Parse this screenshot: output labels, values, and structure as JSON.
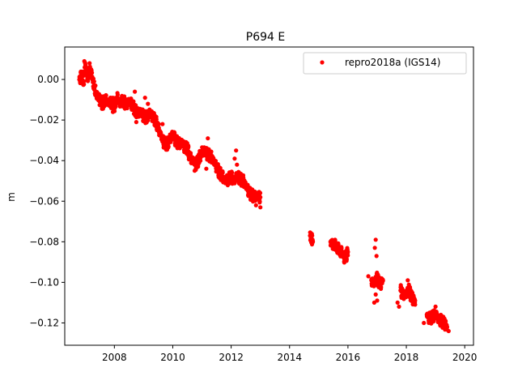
{
  "chart_data": {
    "type": "scatter",
    "title": "P694 E",
    "xlabel": "",
    "ylabel": "m",
    "xlim": [
      2006.3,
      2020.3
    ],
    "ylim": [
      -0.131,
      0.016
    ],
    "xticks": [
      2008,
      2010,
      2012,
      2014,
      2016,
      2018,
      2020
    ],
    "xtick_labels": [
      "2008",
      "2010",
      "2012",
      "2014",
      "2016",
      "2018",
      "2020"
    ],
    "yticks": [
      0.0,
      -0.02,
      -0.04,
      -0.06,
      -0.08,
      -0.1,
      -0.12
    ],
    "ytick_labels": [
      "0.00",
      "−0.02",
      "−0.04",
      "−0.06",
      "−0.08",
      "−0.10",
      "−0.12"
    ],
    "legend": {
      "position": "top-right",
      "entries": [
        "repro2018a (IGS14)"
      ]
    },
    "grid": false,
    "series": [
      {
        "name": "repro2018a (IGS14)",
        "color": "#ff0000",
        "marker": "circle",
        "points": [
          [
            2006.8,
            0.0
          ],
          [
            2006.9,
            0.002
          ],
          [
            2006.95,
            -0.001
          ],
          [
            2007.0,
            0.008
          ],
          [
            2007.05,
            0.003
          ],
          [
            2007.1,
            0.001
          ],
          [
            2007.2,
            0.005
          ],
          [
            2007.25,
            0.0
          ],
          [
            2007.3,
            -0.003
          ],
          [
            2007.35,
            -0.006
          ],
          [
            2007.4,
            -0.008
          ],
          [
            2007.5,
            -0.01
          ],
          [
            2007.6,
            -0.012
          ],
          [
            2007.7,
            -0.01
          ],
          [
            2007.8,
            -0.012
          ],
          [
            2007.9,
            -0.011
          ],
          [
            2008.0,
            -0.013
          ],
          [
            2008.1,
            -0.009
          ],
          [
            2008.2,
            -0.012
          ],
          [
            2008.3,
            -0.01
          ],
          [
            2008.4,
            -0.013
          ],
          [
            2008.5,
            -0.011
          ],
          [
            2008.6,
            -0.012
          ],
          [
            2008.7,
            -0.015
          ],
          [
            2008.8,
            -0.017
          ],
          [
            2008.9,
            -0.016
          ],
          [
            2009.0,
            -0.018
          ],
          [
            2009.1,
            -0.019
          ],
          [
            2009.2,
            -0.017
          ],
          [
            2009.3,
            -0.018
          ],
          [
            2009.4,
            -0.02
          ],
          [
            2009.5,
            -0.024
          ],
          [
            2009.6,
            -0.028
          ],
          [
            2009.7,
            -0.031
          ],
          [
            2009.8,
            -0.032
          ],
          [
            2009.9,
            -0.03
          ],
          [
            2010.0,
            -0.027
          ],
          [
            2010.1,
            -0.03
          ],
          [
            2010.2,
            -0.032
          ],
          [
            2010.3,
            -0.031
          ],
          [
            2010.4,
            -0.033
          ],
          [
            2010.5,
            -0.034
          ],
          [
            2010.6,
            -0.039
          ],
          [
            2010.7,
            -0.04
          ],
          [
            2010.8,
            -0.042
          ],
          [
            2010.9,
            -0.039
          ],
          [
            2011.0,
            -0.036
          ],
          [
            2011.1,
            -0.035
          ],
          [
            2011.2,
            -0.037
          ],
          [
            2011.3,
            -0.038
          ],
          [
            2011.4,
            -0.04
          ],
          [
            2011.5,
            -0.043
          ],
          [
            2011.6,
            -0.046
          ],
          [
            2011.7,
            -0.048
          ],
          [
            2011.8,
            -0.05
          ],
          [
            2011.9,
            -0.049
          ],
          [
            2012.0,
            -0.048
          ],
          [
            2012.1,
            -0.05
          ],
          [
            2012.2,
            -0.047
          ],
          [
            2012.3,
            -0.049
          ],
          [
            2012.4,
            -0.05
          ],
          [
            2012.5,
            -0.052
          ],
          [
            2012.6,
            -0.055
          ],
          [
            2012.7,
            -0.057
          ],
          [
            2012.8,
            -0.058
          ],
          [
            2012.9,
            -0.057
          ],
          [
            2013.0,
            -0.058
          ],
          [
            2014.7,
            -0.077
          ],
          [
            2014.75,
            -0.078
          ],
          [
            2014.8,
            -0.08
          ],
          [
            2015.4,
            -0.08
          ],
          [
            2015.5,
            -0.081
          ],
          [
            2015.8,
            -0.086
          ],
          [
            2015.9,
            -0.088
          ],
          [
            2016.0,
            -0.085
          ],
          [
            2016.8,
            -0.099
          ],
          [
            2016.9,
            -0.1
          ],
          [
            2017.0,
            -0.098
          ],
          [
            2017.1,
            -0.101
          ],
          [
            2017.2,
            -0.099
          ],
          [
            2017.8,
            -0.104
          ],
          [
            2017.9,
            -0.106
          ],
          [
            2018.0,
            -0.105
          ],
          [
            2018.1,
            -0.104
          ],
          [
            2018.2,
            -0.108
          ],
          [
            2018.3,
            -0.109
          ],
          [
            2018.7,
            -0.116
          ],
          [
            2018.8,
            -0.118
          ],
          [
            2018.9,
            -0.117
          ],
          [
            2019.0,
            -0.115
          ],
          [
            2019.1,
            -0.118
          ],
          [
            2019.2,
            -0.119
          ],
          [
            2019.3,
            -0.12
          ],
          [
            2019.4,
            -0.122
          ]
        ],
        "outliers": [
          [
            2006.97,
            0.009
          ],
          [
            2007.15,
            0.008
          ],
          [
            2007.35,
            -0.003
          ],
          [
            2007.95,
            -0.016
          ],
          [
            2008.7,
            -0.006
          ],
          [
            2008.75,
            -0.021
          ],
          [
            2009.05,
            -0.009
          ],
          [
            2009.15,
            -0.012
          ],
          [
            2009.65,
            -0.022
          ],
          [
            2010.05,
            -0.026
          ],
          [
            2010.75,
            -0.045
          ],
          [
            2011.2,
            -0.029
          ],
          [
            2011.15,
            -0.044
          ],
          [
            2012.17,
            -0.035
          ],
          [
            2012.12,
            -0.039
          ],
          [
            2012.2,
            -0.042
          ],
          [
            2012.85,
            -0.062
          ],
          [
            2013.0,
            -0.063
          ],
          [
            2016.95,
            -0.079
          ],
          [
            2016.92,
            -0.083
          ],
          [
            2016.98,
            -0.087
          ],
          [
            2016.95,
            -0.106
          ],
          [
            2016.9,
            -0.11
          ],
          [
            2017.0,
            -0.109
          ],
          [
            2016.7,
            -0.097
          ],
          [
            2017.7,
            -0.11
          ],
          [
            2017.75,
            -0.112
          ],
          [
            2018.05,
            -0.099
          ],
          [
            2018.3,
            -0.111
          ],
          [
            2019.0,
            -0.112
          ],
          [
            2019.45,
            -0.124
          ],
          [
            2018.6,
            -0.12
          ]
        ]
      }
    ]
  }
}
